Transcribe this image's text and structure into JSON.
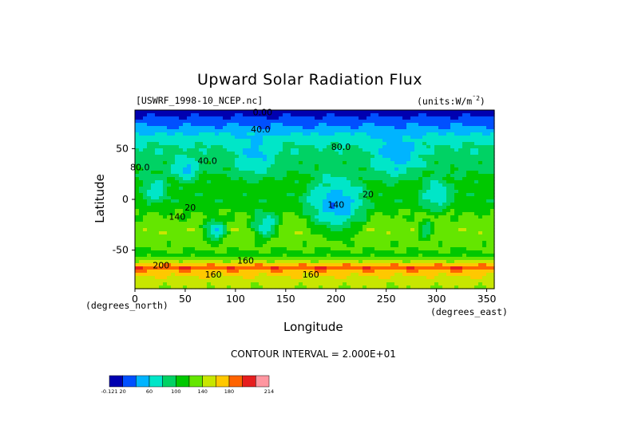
{
  "chart_data": {
    "type": "heatmap",
    "title": "Upward Solar Radiation Flux",
    "file_label": "[USWRF_1998-10_NCEP.nc]",
    "units_label": "(units:W/m^2)",
    "xlabel": "Longitude",
    "ylabel": "Latitude",
    "x_unit_label": "(degrees_east)",
    "y_unit_label": "(degrees_north)",
    "xlim": [
      0,
      357.5
    ],
    "ylim": [
      -88,
      88
    ],
    "x_ticks": [
      0,
      50,
      100,
      150,
      200,
      250,
      300,
      350
    ],
    "y_ticks": [
      50,
      0,
      -50
    ],
    "contour_interval_text": "CONTOUR INTERVAL = 2.000E+01",
    "contour_labels": [
      {
        "text": "0.00",
        "lon": 127,
        "lat": 86
      },
      {
        "text": "40.0",
        "lon": 125,
        "lat": 69
      },
      {
        "text": "80.0",
        "lon": 205,
        "lat": 52
      },
      {
        "text": "80.0",
        "lon": 5,
        "lat": 32
      },
      {
        "text": "40.0",
        "lon": 72,
        "lat": 38
      },
      {
        "text": "20",
        "lon": 232,
        "lat": 5
      },
      {
        "text": "140",
        "lon": 200,
        "lat": -5
      },
      {
        "text": "20",
        "lon": 55,
        "lat": -8
      },
      {
        "text": "140",
        "lon": 42,
        "lat": -17
      },
      {
        "text": "160",
        "lon": 110,
        "lat": -60
      },
      {
        "text": "200",
        "lon": 26,
        "lat": -65
      },
      {
        "text": "160",
        "lon": 78,
        "lat": -74
      },
      {
        "text": "160",
        "lon": 175,
        "lat": -74
      }
    ],
    "field_description_note": "",
    "bands": [
      {
        "lat": 88,
        "value": 0
      },
      {
        "lat": 80,
        "value": 25
      },
      {
        "lat": 70,
        "value": 45
      },
      {
        "lat": 60,
        "value": 70
      },
      {
        "lat": 45,
        "value": 88
      },
      {
        "lat": 30,
        "value": 95
      },
      {
        "lat": 15,
        "value": 110
      },
      {
        "lat": 0,
        "value": 105
      },
      {
        "lat": -15,
        "value": 120
      },
      {
        "lat": -30,
        "value": 135
      },
      {
        "lat": -45,
        "value": 125
      },
      {
        "lat": -55,
        "value": 115
      },
      {
        "lat": -62,
        "value": 150
      },
      {
        "lat": -67,
        "value": 200
      },
      {
        "lat": -72,
        "value": 170
      },
      {
        "lat": -78,
        "value": 155
      },
      {
        "lat": -88,
        "value": 140
      }
    ],
    "anomalies": [
      {
        "lon": 20,
        "lat": 10,
        "r": 18,
        "value": 55
      },
      {
        "lon": 80,
        "lat": -30,
        "r": 16,
        "value": 35
      },
      {
        "lon": 120,
        "lat": 45,
        "r": 30,
        "value": 45
      },
      {
        "lon": 260,
        "lat": 45,
        "r": 35,
        "value": 40
      },
      {
        "lon": 300,
        "lat": 5,
        "r": 22,
        "value": 50
      },
      {
        "lon": 290,
        "lat": -30,
        "r": 12,
        "value": 70
      },
      {
        "lon": 130,
        "lat": -25,
        "r": 20,
        "value": 45
      },
      {
        "lon": 200,
        "lat": -5,
        "r": 40,
        "value": 25
      },
      {
        "lon": 50,
        "lat": 30,
        "r": 18,
        "value": 40
      }
    ],
    "colorbar": {
      "tick_labels": [
        "-0.121",
        "20",
        "60",
        "100",
        "140",
        "180",
        "214"
      ],
      "levels": [
        -0.121,
        20,
        40,
        60,
        80,
        100,
        120,
        140,
        160,
        180,
        200,
        214
      ],
      "colors": [
        "#0000b0",
        "#0050ff",
        "#00b4ff",
        "#00e6c8",
        "#00d264",
        "#00c800",
        "#64e600",
        "#c8e600",
        "#ffc800",
        "#ff6400",
        "#e61e1e",
        "#ff96a0"
      ]
    }
  }
}
